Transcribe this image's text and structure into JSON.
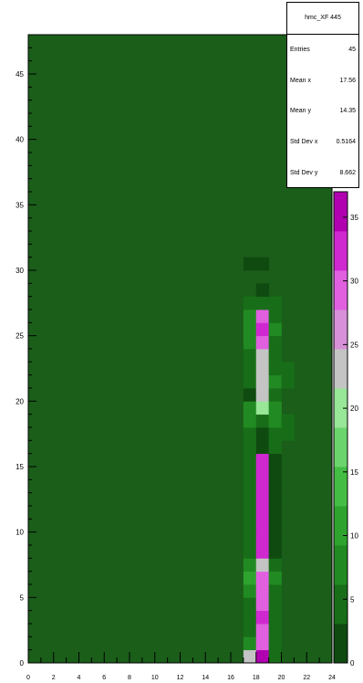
{
  "chart_data": {
    "type": "heatmap",
    "stats_box": {
      "title": "hmc_XF 445",
      "entries": [
        {
          "label": "Entries",
          "value": "45"
        },
        {
          "label": "Mean x",
          "value": "17.56"
        },
        {
          "label": "Mean y",
          "value": "14.35"
        },
        {
          "label": "Std Dev x",
          "value": "0.5164"
        },
        {
          "label": "Std Dev y",
          "value": "8.662"
        }
      ]
    },
    "x_ticks": [
      "0",
      "2",
      "4",
      "6",
      "8",
      "10",
      "12",
      "14",
      "16",
      "18",
      "20",
      "22",
      "24"
    ],
    "y_ticks": [
      "0",
      "5",
      "10",
      "15",
      "20",
      "25",
      "30",
      "35",
      "40",
      "45"
    ],
    "z_ticks": [
      "0",
      "5",
      "10",
      "15",
      "20",
      "25",
      "30",
      "35"
    ],
    "xlim": [
      0,
      24
    ],
    "ylim": [
      0,
      48
    ],
    "zlim": [
      0,
      37
    ],
    "background_color": "#1a5e1a",
    "palette": [
      "#0f4a10",
      "#186e18",
      "#228a22",
      "#2ea42e",
      "#44bd44",
      "#6cd46c",
      "#98e698",
      "#c4c4c4",
      "#d890d8",
      "#e060e0",
      "#d028d0",
      "#b000b0"
    ],
    "cells": [
      {
        "x": 17,
        "y": 0,
        "z": 24
      },
      {
        "x": 18,
        "y": 0,
        "z": 37
      },
      {
        "x": 19,
        "y": 0,
        "z": 5
      },
      {
        "x": 17,
        "y": 1,
        "z": 8
      },
      {
        "x": 18,
        "y": 1,
        "z": 30
      },
      {
        "x": 19,
        "y": 1,
        "z": 6
      },
      {
        "x": 17,
        "y": 2,
        "z": 6
      },
      {
        "x": 18,
        "y": 2,
        "z": 30
      },
      {
        "x": 19,
        "y": 2,
        "z": 4
      },
      {
        "x": 17,
        "y": 3,
        "z": 5
      },
      {
        "x": 18,
        "y": 3,
        "z": 31
      },
      {
        "x": 19,
        "y": 3,
        "z": 4
      },
      {
        "x": 17,
        "y": 4,
        "z": 6
      },
      {
        "x": 18,
        "y": 4,
        "z": 30
      },
      {
        "x": 19,
        "y": 4,
        "z": 5
      },
      {
        "x": 17,
        "y": 5,
        "z": 7
      },
      {
        "x": 18,
        "y": 5,
        "z": 29
      },
      {
        "x": 19,
        "y": 5,
        "z": 6
      },
      {
        "x": 17,
        "y": 6,
        "z": 10
      },
      {
        "x": 18,
        "y": 6,
        "z": 30
      },
      {
        "x": 19,
        "y": 6,
        "z": 7
      },
      {
        "x": 17,
        "y": 7,
        "z": 8
      },
      {
        "x": 18,
        "y": 7,
        "z": 24
      },
      {
        "x": 19,
        "y": 7,
        "z": 5
      },
      {
        "x": 17,
        "y": 8,
        "z": 6
      },
      {
        "x": 18,
        "y": 8,
        "z": 33
      },
      {
        "x": 19,
        "y": 8,
        "z": 3
      },
      {
        "x": 17,
        "y": 9,
        "z": 5
      },
      {
        "x": 18,
        "y": 9,
        "z": 33
      },
      {
        "x": 19,
        "y": 9,
        "z": 2
      },
      {
        "x": 17,
        "y": 10,
        "z": 5
      },
      {
        "x": 18,
        "y": 10,
        "z": 33
      },
      {
        "x": 19,
        "y": 10,
        "z": 2
      },
      {
        "x": 17,
        "y": 11,
        "z": 5
      },
      {
        "x": 18,
        "y": 11,
        "z": 33
      },
      {
        "x": 19,
        "y": 11,
        "z": 2
      },
      {
        "x": 17,
        "y": 12,
        "z": 5
      },
      {
        "x": 18,
        "y": 12,
        "z": 33
      },
      {
        "x": 19,
        "y": 12,
        "z": 2
      },
      {
        "x": 17,
        "y": 13,
        "z": 5
      },
      {
        "x": 18,
        "y": 13,
        "z": 33
      },
      {
        "x": 19,
        "y": 13,
        "z": 2
      },
      {
        "x": 17,
        "y": 14,
        "z": 5
      },
      {
        "x": 18,
        "y": 14,
        "z": 33
      },
      {
        "x": 19,
        "y": 14,
        "z": 2
      },
      {
        "x": 17,
        "y": 15,
        "z": 5
      },
      {
        "x": 18,
        "y": 15,
        "z": 33
      },
      {
        "x": 19,
        "y": 15,
        "z": 3
      },
      {
        "x": 17,
        "y": 16,
        "z": 5
      },
      {
        "x": 18,
        "y": 16,
        "z": 2
      },
      {
        "x": 19,
        "y": 16,
        "z": 4
      },
      {
        "x": 17,
        "y": 17,
        "z": 6
      },
      {
        "x": 18,
        "y": 17,
        "z": 3
      },
      {
        "x": 19,
        "y": 17,
        "z": 6
      },
      {
        "x": 20,
        "y": 17,
        "z": 4
      },
      {
        "x": 17,
        "y": 18,
        "z": 7
      },
      {
        "x": 18,
        "y": 18,
        "z": 4
      },
      {
        "x": 19,
        "y": 18,
        "z": 7
      },
      {
        "x": 20,
        "y": 18,
        "z": 5
      },
      {
        "x": 17,
        "y": 19,
        "z": 8
      },
      {
        "x": 18,
        "y": 19,
        "z": 20
      },
      {
        "x": 19,
        "y": 19,
        "z": 7
      },
      {
        "x": 17,
        "y": 20,
        "z": 3
      },
      {
        "x": 18,
        "y": 20,
        "z": 24
      },
      {
        "x": 19,
        "y": 20,
        "z": 6
      },
      {
        "x": 17,
        "y": 21,
        "z": 4
      },
      {
        "x": 18,
        "y": 21,
        "z": 24
      },
      {
        "x": 19,
        "y": 21,
        "z": 8
      },
      {
        "x": 20,
        "y": 21,
        "z": 5
      },
      {
        "x": 17,
        "y": 22,
        "z": 5
      },
      {
        "x": 18,
        "y": 22,
        "z": 22
      },
      {
        "x": 19,
        "y": 22,
        "z": 6
      },
      {
        "x": 20,
        "y": 22,
        "z": 4
      },
      {
        "x": 17,
        "y": 23,
        "z": 6
      },
      {
        "x": 18,
        "y": 23,
        "z": 23
      },
      {
        "x": 19,
        "y": 23,
        "z": 5
      },
      {
        "x": 17,
        "y": 24,
        "z": 8
      },
      {
        "x": 18,
        "y": 24,
        "z": 30
      },
      {
        "x": 19,
        "y": 24,
        "z": 6
      },
      {
        "x": 17,
        "y": 25,
        "z": 9
      },
      {
        "x": 18,
        "y": 25,
        "z": 33
      },
      {
        "x": 19,
        "y": 25,
        "z": 7
      },
      {
        "x": 17,
        "y": 26,
        "z": 7
      },
      {
        "x": 18,
        "y": 26,
        "z": 28
      },
      {
        "x": 19,
        "y": 26,
        "z": 5
      },
      {
        "x": 17,
        "y": 27,
        "z": 5
      },
      {
        "x": 18,
        "y": 27,
        "z": 4
      },
      {
        "x": 19,
        "y": 27,
        "z": 4
      },
      {
        "x": 18,
        "y": 28,
        "z": 3
      },
      {
        "x": 17,
        "y": 30,
        "z": 2
      },
      {
        "x": 18,
        "y": 30,
        "z": 2
      }
    ]
  }
}
